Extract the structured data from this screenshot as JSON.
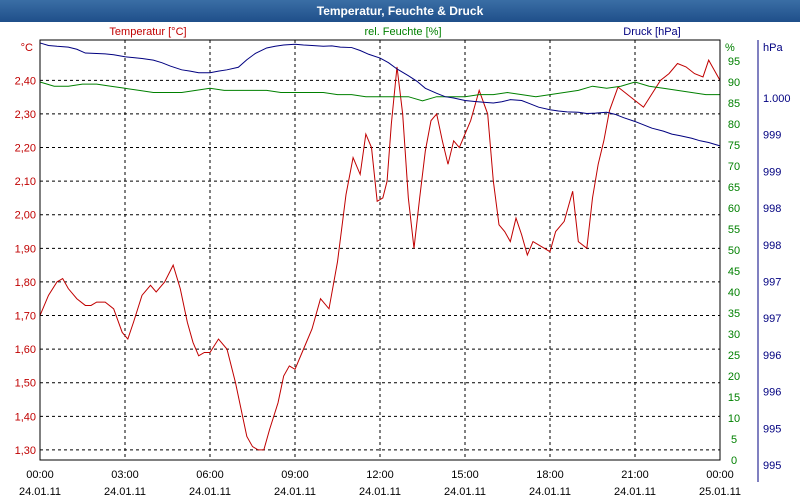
{
  "window": {
    "title": "Temperatur, Feuchte & Druck"
  },
  "chart_data": {
    "type": "line",
    "x_ticks": [
      {
        "time": "00:00",
        "date": "24.01.11"
      },
      {
        "time": "03:00",
        "date": "24.01.11"
      },
      {
        "time": "06:00",
        "date": "24.01.11"
      },
      {
        "time": "09:00",
        "date": "24.01.11"
      },
      {
        "time": "12:00",
        "date": "24.01.11"
      },
      {
        "time": "15:00",
        "date": "24.01.11"
      },
      {
        "time": "18:00",
        "date": "24.01.11"
      },
      {
        "time": "21:00",
        "date": "24.01.11"
      },
      {
        "time": "00:00",
        "date": "25.01.11"
      }
    ],
    "xlim": [
      0,
      24
    ],
    "grid": true,
    "axes": {
      "temperature": {
        "label": "Temperatur [°C]",
        "unit": "°C",
        "color": "#c00000",
        "ylim": [
          1.27,
          2.52
        ],
        "tick_values": [
          1.3,
          1.4,
          1.5,
          1.6,
          1.7,
          1.8,
          1.9,
          2.0,
          2.1,
          2.2,
          2.3,
          2.4
        ],
        "tick_labels": [
          "1,30",
          "1,40",
          "1,50",
          "1,60",
          "1,70",
          "1,80",
          "1,90",
          "2,00",
          "2,10",
          "2,20",
          "2,30",
          "2,40"
        ]
      },
      "humidity": {
        "label": "rel. Feuchte [%]",
        "unit": "%",
        "color": "#008000",
        "ylim": [
          0,
          100
        ],
        "tick_values": [
          0,
          5,
          10,
          15,
          20,
          25,
          30,
          35,
          40,
          45,
          50,
          55,
          60,
          65,
          70,
          75,
          80,
          85,
          90,
          95
        ],
        "tick_labels": [
          "0",
          "5",
          "10",
          "15",
          "20",
          "25",
          "30",
          "35",
          "40",
          "45",
          "50",
          "55",
          "60",
          "65",
          "70",
          "75",
          "80",
          "85",
          "90",
          "95"
        ]
      },
      "pressure": {
        "label": "Druck [hPa]",
        "unit": "hPa",
        "color": "#000080",
        "tick_labels": [
          "1.000",
          "999",
          "999",
          "998",
          "998",
          "997",
          "997",
          "996",
          "996",
          "995",
          "995"
        ]
      }
    },
    "series": [
      {
        "name": "Temperatur [°C]",
        "axis": "temperature",
        "color": "#c00000",
        "x": [
          0,
          0.3,
          0.6,
          0.8,
          1.0,
          1.3,
          1.6,
          1.8,
          2.0,
          2.3,
          2.6,
          2.9,
          3.1,
          3.3,
          3.6,
          3.9,
          4.1,
          4.4,
          4.7,
          4.95,
          5.2,
          5.4,
          5.6,
          5.8,
          6.0,
          6.3,
          6.6,
          6.9,
          7.1,
          7.3,
          7.5,
          7.7,
          7.9,
          8.1,
          8.4,
          8.6,
          8.8,
          9.0,
          9.3,
          9.6,
          9.9,
          10.2,
          10.5,
          10.8,
          11.05,
          11.3,
          11.5,
          11.7,
          11.9,
          12.1,
          12.25,
          12.4,
          12.6,
          12.8,
          13.0,
          13.2,
          13.4,
          13.6,
          13.8,
          14.0,
          14.2,
          14.4,
          14.6,
          14.8,
          15.0,
          15.2,
          15.5,
          15.8,
          16.0,
          16.2,
          16.4,
          16.6,
          16.8,
          17.0,
          17.2,
          17.4,
          17.6,
          17.8,
          18.0,
          18.2,
          18.5,
          18.8,
          19.0,
          19.3,
          19.5,
          19.7,
          19.9,
          20.1,
          20.4,
          20.7,
          21.0,
          21.3,
          21.6,
          21.9,
          22.2,
          22.5,
          22.8,
          23.1,
          23.4,
          23.6,
          23.8,
          24.0
        ],
        "values": [
          1.7,
          1.76,
          1.8,
          1.81,
          1.78,
          1.75,
          1.73,
          1.73,
          1.74,
          1.74,
          1.72,
          1.65,
          1.63,
          1.68,
          1.76,
          1.79,
          1.77,
          1.8,
          1.85,
          1.78,
          1.68,
          1.62,
          1.58,
          1.59,
          1.59,
          1.63,
          1.6,
          1.5,
          1.42,
          1.34,
          1.31,
          1.3,
          1.3,
          1.36,
          1.44,
          1.52,
          1.55,
          1.54,
          1.6,
          1.66,
          1.75,
          1.72,
          1.86,
          2.06,
          2.17,
          2.12,
          2.24,
          2.2,
          2.04,
          2.05,
          2.1,
          2.27,
          2.44,
          2.3,
          2.05,
          1.9,
          2.05,
          2.19,
          2.28,
          2.3,
          2.22,
          2.15,
          2.22,
          2.2,
          2.24,
          2.28,
          2.37,
          2.3,
          2.1,
          1.97,
          1.95,
          1.92,
          1.99,
          1.94,
          1.88,
          1.92,
          1.91,
          1.9,
          1.89,
          1.95,
          1.98,
          2.07,
          1.92,
          1.9,
          2.05,
          2.15,
          2.22,
          2.31,
          2.38,
          2.36,
          2.34,
          2.32,
          2.36,
          2.4,
          2.42,
          2.45,
          2.44,
          2.42,
          2.41,
          2.46,
          2.43,
          2.4
        ]
      },
      {
        "name": "rel. Feuchte [%]",
        "axis": "humidity",
        "color": "#008000",
        "x": [
          0,
          0.5,
          1.0,
          1.5,
          2.0,
          2.5,
          3.0,
          3.5,
          4.0,
          4.5,
          5.0,
          5.5,
          6.0,
          6.5,
          7.0,
          7.5,
          8.0,
          8.5,
          9.0,
          9.5,
          10.0,
          10.5,
          11.0,
          11.5,
          12.0,
          12.5,
          13.0,
          13.5,
          14.0,
          14.5,
          15.0,
          15.5,
          16.0,
          16.5,
          17.0,
          17.5,
          18.0,
          18.5,
          19.0,
          19.5,
          20.0,
          20.5,
          21.0,
          21.5,
          22.0,
          22.5,
          23.0,
          23.5,
          24.0
        ],
        "values": [
          90,
          89,
          89,
          89.5,
          89.5,
          89,
          88.5,
          88,
          87.5,
          87.5,
          87.5,
          88,
          88.5,
          88,
          88,
          88,
          88,
          87.5,
          87.5,
          87.5,
          87.5,
          87,
          87,
          86.5,
          86.5,
          86.5,
          86.5,
          85.5,
          86.5,
          86.5,
          86.5,
          87,
          87,
          87.5,
          87,
          86.5,
          87,
          87.5,
          88,
          89,
          88.5,
          89,
          90,
          89,
          88.5,
          88,
          87.5,
          87,
          87
        ]
      },
      {
        "name": "Druck [hPa]",
        "axis": "pressure",
        "color": "#000080",
        "x": [
          0,
          0.3,
          0.6,
          1.0,
          1.3,
          1.6,
          2.0,
          2.3,
          2.6,
          3.0,
          3.3,
          3.6,
          4.0,
          4.3,
          4.6,
          5.0,
          5.3,
          5.6,
          6.0,
          6.3,
          6.6,
          7.0,
          7.3,
          7.6,
          8.0,
          8.3,
          8.6,
          9.0,
          9.3,
          9.6,
          10.0,
          10.3,
          10.6,
          11.0,
          11.3,
          11.6,
          12.0,
          12.3,
          12.6,
          13.0,
          13.3,
          13.6,
          14.0,
          14.3,
          14.6,
          15.0,
          15.3,
          15.6,
          16.0,
          16.3,
          16.6,
          17.0,
          17.3,
          17.6,
          18.0,
          18.3,
          18.6,
          19.0,
          19.3,
          19.6,
          20.0,
          20.3,
          20.6,
          21.0,
          21.3,
          21.6,
          22.0,
          22.3,
          22.6,
          23.0,
          23.3,
          23.6,
          24.0
        ],
        "values": [
          99.3,
          98.7,
          98.5,
          98.3,
          97.8,
          96.9,
          96.8,
          96.7,
          96.5,
          96.0,
          95.8,
          95.6,
          95.2,
          94.6,
          93.8,
          92.9,
          92.6,
          92.2,
          92.2,
          92.6,
          92.9,
          93.5,
          95.3,
          96.8,
          98.1,
          98.5,
          98.8,
          99.0,
          98.8,
          98.7,
          98.5,
          98.6,
          98.3,
          98.2,
          97.5,
          96.6,
          95.7,
          94.6,
          93.1,
          91.5,
          90.2,
          88.5,
          87.3,
          86.5,
          86.2,
          85.6,
          85.4,
          85.2,
          85.0,
          85.3,
          85.8,
          85.6,
          84.8,
          84.0,
          83.4,
          83.1,
          82.9,
          82.8,
          82.5,
          82.6,
          82.8,
          82.3,
          81.5,
          80.6,
          79.8,
          79.0,
          78.3,
          77.6,
          77.2,
          76.6,
          76.0,
          75.6,
          74.8
        ]
      }
    ]
  }
}
